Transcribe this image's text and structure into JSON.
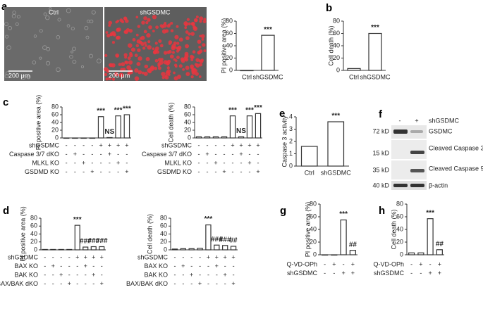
{
  "images": {
    "panel": "a",
    "labels": [
      "Ctrl",
      "shGSDMC"
    ],
    "scale_bar": "200 μm"
  },
  "blot": {
    "panel": "f",
    "lanes": [
      "-",
      "+"
    ],
    "treatment": "shGSDMC",
    "rows": [
      {
        "marker": "72 kD",
        "label": "GSDMC"
      },
      {
        "marker": "15 kD",
        "label": "Cleaved Caspase 3"
      },
      {
        "marker": "35 kD",
        "label": "Cleaved Caspase 9"
      },
      {
        "marker": "40 kD",
        "label": "β-actin"
      }
    ]
  },
  "chart_data": [
    {
      "type": "bar",
      "ylabel": "PI positive area (%)",
      "categories": [
        "Ctrl",
        "shGSDMC"
      ],
      "values": [
        0,
        57
      ],
      "annotations": [
        null,
        "***"
      ],
      "ylim": [
        0,
        80
      ],
      "yticks": [
        0,
        20,
        40,
        60,
        80
      ]
    },
    {
      "type": "bar",
      "panel": "b",
      "ylabel": "Cell death (%)",
      "categories": [
        "Ctrl",
        "shGSDMC"
      ],
      "values": [
        3,
        60
      ],
      "annotations": [
        null,
        "***"
      ],
      "ylim": [
        0,
        80
      ],
      "yticks": [
        0,
        20,
        40,
        60,
        80
      ]
    },
    {
      "type": "bar",
      "panel": "c",
      "ylabel": "PI positive area (%)",
      "values": [
        0,
        0,
        0,
        0,
        55,
        1,
        57,
        60
      ],
      "annotations": [
        null,
        null,
        null,
        null,
        "***",
        "NS",
        "***",
        "***"
      ],
      "ylim": [
        0,
        80
      ],
      "yticks": [
        0,
        20,
        40,
        60,
        80
      ],
      "conditions": [
        {
          "name": "shGSDMC",
          "signs": [
            "-",
            "-",
            "-",
            "-",
            "+",
            "+",
            "+",
            "+"
          ]
        },
        {
          "name": "Caspase 3/7 dKO",
          "signs": [
            "-",
            "+",
            "-",
            "-",
            "-",
            "+",
            "-",
            "-"
          ]
        },
        {
          "name": "MLKL KO",
          "signs": [
            "-",
            "-",
            "+",
            "-",
            "-",
            "-",
            "+",
            "-"
          ]
        },
        {
          "name": "GSDMD KO",
          "signs": [
            "-",
            "-",
            "-",
            "+",
            "-",
            "-",
            "-",
            "+"
          ]
        }
      ]
    },
    {
      "type": "bar",
      "ylabel": "Cell death (%)",
      "values": [
        3,
        3,
        3,
        3,
        57,
        3,
        57,
        63
      ],
      "annotations": [
        null,
        null,
        null,
        null,
        "***",
        "NS",
        "***",
        "***"
      ],
      "ylim": [
        0,
        80
      ],
      "yticks": [
        0,
        20,
        40,
        60,
        80
      ],
      "conditions": [
        {
          "name": "shGSDMC",
          "signs": [
            "-",
            "-",
            "-",
            "-",
            "+",
            "+",
            "+",
            "+"
          ]
        },
        {
          "name": "Caspase 3/7 dKO",
          "signs": [
            "-",
            "+",
            "-",
            "-",
            "-",
            "+",
            "-",
            "-"
          ]
        },
        {
          "name": "MLKL KO",
          "signs": [
            "-",
            "-",
            "+",
            "-",
            "-",
            "-",
            "+",
            "-"
          ]
        },
        {
          "name": "GSDMD KO",
          "signs": [
            "-",
            "-",
            "-",
            "+",
            "-",
            "-",
            "-",
            "+"
          ]
        }
      ]
    },
    {
      "type": "bar",
      "panel": "e",
      "ylabel": "Caspase 3 activity",
      "categories": [
        "Ctrl",
        "shGSDMC"
      ],
      "values": [
        1.6,
        3.6
      ],
      "annotations": [
        null,
        "***"
      ],
      "ylim": [
        0,
        4
      ],
      "yticks": [
        0,
        1,
        2,
        3,
        4
      ]
    },
    {
      "type": "bar",
      "panel": "d",
      "ylabel": "PI positive area (%)",
      "values": [
        1,
        1,
        1,
        1,
        62,
        7,
        8,
        8
      ],
      "annotations": [
        null,
        null,
        null,
        null,
        "***",
        "###",
        "###",
        "###"
      ],
      "ylim": [
        0,
        80
      ],
      "yticks": [
        0,
        20,
        40,
        60,
        80
      ],
      "conditions": [
        {
          "name": "shGSDMC",
          "signs": [
            "-",
            "-",
            "-",
            "-",
            "+",
            "+",
            "+",
            "+"
          ]
        },
        {
          "name": "BAX KO",
          "signs": [
            "-",
            "+",
            "-",
            "-",
            "-",
            "+",
            "-",
            "-"
          ]
        },
        {
          "name": "BAK KO",
          "signs": [
            "-",
            "-",
            "+",
            "-",
            "-",
            "-",
            "+",
            "-"
          ]
        },
        {
          "name": "BAX/BAK dKO",
          "signs": [
            "-",
            "-",
            "-",
            "+",
            "-",
            "-",
            "-",
            "+"
          ]
        }
      ]
    },
    {
      "type": "bar",
      "ylabel": "Cell death (%)",
      "values": [
        2,
        3,
        3,
        4,
        63,
        12,
        11,
        9
      ],
      "annotations": [
        null,
        null,
        null,
        null,
        "***",
        "###",
        "###",
        "##"
      ],
      "ylim": [
        0,
        80
      ],
      "yticks": [
        0,
        20,
        40,
        60,
        80
      ],
      "conditions": [
        {
          "name": "shGSDMC",
          "signs": [
            "-",
            "-",
            "-",
            "-",
            "+",
            "+",
            "+",
            "+"
          ]
        },
        {
          "name": "BAX KO",
          "signs": [
            "-",
            "+",
            "-",
            "-",
            "-",
            "+",
            "-",
            "-"
          ]
        },
        {
          "name": "BAK KO",
          "signs": [
            "-",
            "-",
            "+",
            "-",
            "-",
            "-",
            "+",
            "-"
          ]
        },
        {
          "name": "BAX/BAK dKO",
          "signs": [
            "-",
            "-",
            "-",
            "+",
            "-",
            "-",
            "-",
            "+"
          ]
        }
      ]
    },
    {
      "type": "bar",
      "panel": "g",
      "ylabel": "PI positive area (%)",
      "values": [
        0,
        0,
        55,
        7
      ],
      "annotations": [
        null,
        null,
        "***",
        "##"
      ],
      "ylim": [
        0,
        80
      ],
      "yticks": [
        0,
        20,
        40,
        60,
        80
      ],
      "conditions": [
        {
          "name": "Q-VD-OPh",
          "signs": [
            "-",
            "+",
            "-",
            "+"
          ]
        },
        {
          "name": "shGSDMC",
          "signs": [
            "-",
            "-",
            "+",
            "+"
          ]
        }
      ]
    },
    {
      "type": "bar",
      "panel": "h",
      "ylabel": "Cell death (%)",
      "values": [
        3,
        3,
        57,
        8
      ],
      "annotations": [
        null,
        null,
        "***",
        "##"
      ],
      "ylim": [
        0,
        80
      ],
      "yticks": [
        0,
        20,
        40,
        60,
        80
      ],
      "conditions": [
        {
          "name": "Q-VD-OPh",
          "signs": [
            "-",
            "+",
            "-",
            "+"
          ]
        },
        {
          "name": "shGSDMC",
          "signs": [
            "-",
            "-",
            "+",
            "+"
          ]
        }
      ]
    }
  ]
}
